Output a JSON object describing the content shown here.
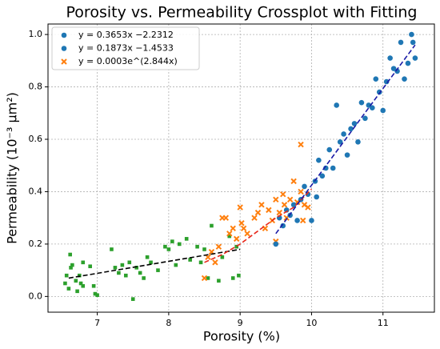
{
  "chart_data": {
    "type": "scatter",
    "title": "Porosity vs. Permeability Crossplot with Fitting",
    "x_label": "Porosity (%)",
    "y_label": "Permeability (10⁻³ μm²)",
    "xlim": [
      6.31,
      11.72
    ],
    "ylim": [
      -0.06,
      1.04
    ],
    "xticks": [
      7,
      8,
      9,
      10,
      11
    ],
    "yticks": [
      {
        "value": 0,
        "label": "0.0"
      },
      0.2,
      0.4,
      0.6,
      0.8,
      {
        "value": 1,
        "label": "1.0"
      }
    ],
    "grid": true,
    "legend_position": "upper left",
    "legend": [
      {
        "name": "y = 0.3653x −2.2312",
        "color": "#1f77b4",
        "marker": "circle"
      },
      {
        "name": "y = 0.1873x −1.4533",
        "color": "#1f77b4",
        "marker": "circle"
      },
      {
        "name": "y = 0.0003e^(2.844x)",
        "color": "#ff7f0e",
        "marker": "x"
      }
    ],
    "series": [
      {
        "color": "#2ca02c",
        "marker": "square",
        "x": [
          6.55,
          6.57,
          6.6,
          6.62,
          6.63,
          6.65,
          6.7,
          6.72,
          6.75,
          6.77,
          6.8,
          6.8,
          6.9,
          6.95,
          6.97,
          7.0,
          7.2,
          7.25,
          7.3,
          7.35,
          7.4,
          7.45,
          7.5,
          7.55,
          7.6,
          7.65,
          7.7,
          7.75,
          7.85,
          7.95,
          8.0,
          8.05,
          8.1,
          8.15,
          8.25,
          8.3,
          8.4,
          8.45,
          8.5,
          8.55,
          8.6,
          8.7,
          8.75,
          8.85,
          8.9,
          8.95,
          8.98
        ],
        "values": [
          0.05,
          0.08,
          0.03,
          0.16,
          0.11,
          0.12,
          0.06,
          0.02,
          0.08,
          0.05,
          0.13,
          0.04,
          0.115,
          0.04,
          0.01,
          0.005,
          0.18,
          0.11,
          0.09,
          0.12,
          0.08,
          0.13,
          -0.01,
          0.11,
          0.09,
          0.07,
          0.15,
          0.13,
          0.1,
          0.19,
          0.18,
          0.21,
          0.12,
          0.2,
          0.22,
          0.14,
          0.19,
          0.13,
          0.18,
          0.07,
          0.27,
          0.06,
          0.15,
          0.23,
          0.07,
          0.19,
          0.08
        ]
      },
      {
        "color": "#ff7f0e",
        "marker": "x",
        "x": [
          8.5,
          8.55,
          8.6,
          8.65,
          8.7,
          8.75,
          8.8,
          8.85,
          8.9,
          8.95,
          9.0,
          9.02,
          9.05,
          9.1,
          9.2,
          9.25,
          9.3,
          9.35,
          9.4,
          9.45,
          9.5,
          9.5,
          9.55,
          9.6,
          9.62,
          9.65,
          9.7,
          9.75,
          9.8,
          9.85,
          9.85,
          9.9,
          9.95,
          9.88
        ],
        "values": [
          0.07,
          0.15,
          0.17,
          0.13,
          0.19,
          0.3,
          0.3,
          0.24,
          0.26,
          0.22,
          0.34,
          0.28,
          0.26,
          0.24,
          0.3,
          0.32,
          0.35,
          0.26,
          0.33,
          0.29,
          0.37,
          0.21,
          0.32,
          0.39,
          0.35,
          0.3,
          0.37,
          0.44,
          0.36,
          0.58,
          0.4,
          0.35,
          0.34,
          0.29
        ]
      },
      {
        "color": "#1f77b4",
        "marker": "circle",
        "x": [
          9.5,
          9.55,
          9.6,
          9.65,
          9.7,
          9.75,
          9.8,
          9.85,
          9.9,
          9.95,
          10.0,
          10.05,
          10.07,
          10.1,
          10.15,
          10.2,
          10.25,
          10.3,
          10.35,
          10.4,
          10.45,
          10.5,
          10.55,
          10.6,
          10.65,
          10.7,
          10.75,
          10.8,
          10.85,
          10.9,
          10.95,
          11.0,
          11.05,
          11.1,
          11.15,
          11.2,
          11.25,
          11.3,
          11.35,
          11.4,
          11.42,
          11.45
        ],
        "values": [
          0.2,
          0.3,
          0.27,
          0.33,
          0.31,
          0.35,
          0.29,
          0.37,
          0.42,
          0.39,
          0.29,
          0.44,
          0.38,
          0.52,
          0.46,
          0.49,
          0.56,
          0.49,
          0.73,
          0.59,
          0.62,
          0.54,
          0.64,
          0.66,
          0.59,
          0.74,
          0.68,
          0.73,
          0.72,
          0.83,
          0.78,
          0.71,
          0.82,
          0.91,
          0.87,
          0.86,
          0.97,
          0.83,
          0.89,
          1.0,
          0.97,
          0.91
        ]
      }
    ],
    "fit_lines": [
      {
        "color": "#000000",
        "x": [
          6.6,
          9.0
        ],
        "values": [
          0.07,
          0.18
        ]
      },
      {
        "color": "#e8281c",
        "x": [
          8.5,
          8.75,
          9.0,
          9.25,
          9.5,
          9.75,
          10.0
        ],
        "values": [
          0.13,
          0.16,
          0.2,
          0.25,
          0.3,
          0.34,
          0.41
        ]
      },
      {
        "color": "#1a1aa6",
        "x": [
          9.5,
          11.45
        ],
        "values": [
          0.24,
          0.96
        ]
      }
    ]
  }
}
